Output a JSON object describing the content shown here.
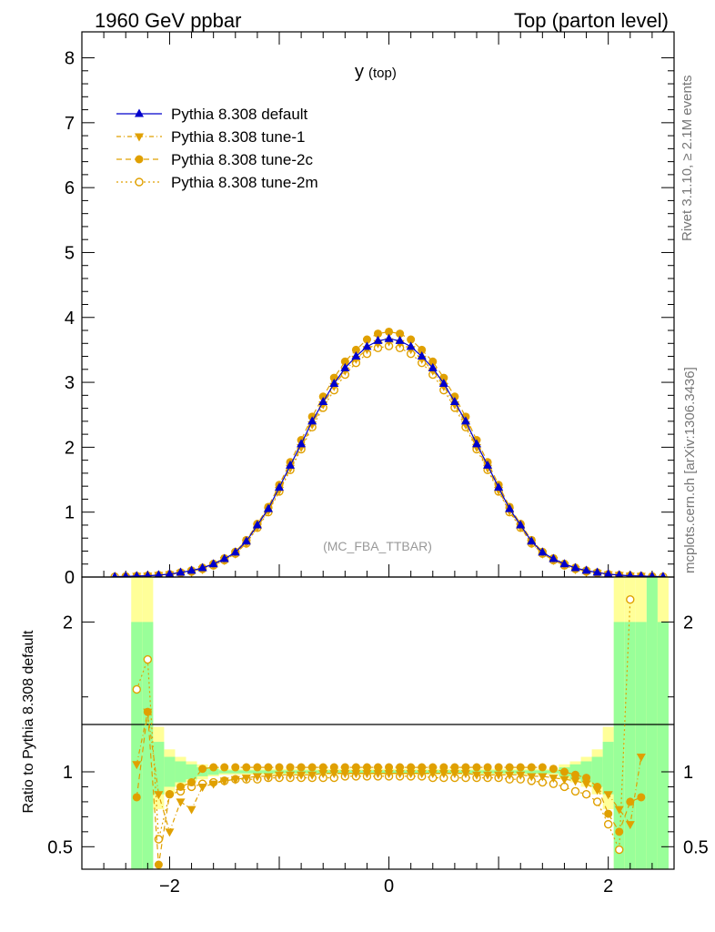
{
  "header": {
    "left": "1960 GeV ppbar",
    "right": "Top (parton level)"
  },
  "side_labels": {
    "rivet": "Rivet 3.1.10, ≥ 2.1M events",
    "mcplots": "mcplots.cern.ch [arXiv:1306.3436]"
  },
  "chart_data": {
    "type": "line",
    "title_main": "y",
    "title_sub": "(top)",
    "watermark": "(MC_FBA_TTBAR)",
    "xlim": [
      -2.8,
      2.6
    ],
    "upper": {
      "ylim": [
        0,
        8.4
      ],
      "yticks": [
        0,
        1,
        2,
        3,
        4,
        5,
        6,
        7,
        8
      ],
      "ytick_labels": [
        "0",
        "1",
        "2",
        "3",
        "4",
        "5",
        "6",
        "7",
        "8"
      ]
    },
    "ratio": {
      "ylabel": "Ratio to Pythia 8.308 default",
      "ylim": [
        0.35,
        2.3
      ],
      "yticks": [
        0.5,
        1,
        2
      ],
      "ytick_labels": [
        "0.5",
        "1",
        "2"
      ],
      "xticks": [
        -2,
        0,
        2
      ],
      "xtick_labels": [
        "−2",
        "0",
        "2"
      ]
    },
    "legend_position": "top-left",
    "colors": {
      "default": "#0000cc",
      "tunes": "#e0a000",
      "band_inner": "#99ff99",
      "band_outer": "#ffff99"
    },
    "x": [
      -2.5,
      -2.4,
      -2.3,
      -2.2,
      -2.1,
      -2.0,
      -1.9,
      -1.8,
      -1.7,
      -1.6,
      -1.5,
      -1.4,
      -1.3,
      -1.2,
      -1.1,
      -1.0,
      -0.9,
      -0.8,
      -0.7,
      -0.6,
      -0.5,
      -0.4,
      -0.3,
      -0.2,
      -0.1,
      0.0,
      0.1,
      0.2,
      0.3,
      0.4,
      0.5,
      0.6,
      0.7,
      0.8,
      0.9,
      1.0,
      1.1,
      1.2,
      1.3,
      1.4,
      1.5,
      1.6,
      1.7,
      1.8,
      1.9,
      2.0,
      2.1,
      2.2,
      2.3,
      2.4,
      2.5
    ],
    "series": [
      {
        "name": "Pythia 8.308 default",
        "marker": "triangle-up",
        "linestyle": "solid",
        "values": [
          0.005,
          0.01,
          0.015,
          0.02,
          0.03,
          0.045,
          0.07,
          0.1,
          0.14,
          0.2,
          0.28,
          0.38,
          0.55,
          0.8,
          1.05,
          1.38,
          1.72,
          2.05,
          2.4,
          2.7,
          2.98,
          3.22,
          3.4,
          3.55,
          3.64,
          3.67,
          3.64,
          3.55,
          3.4,
          3.22,
          2.98,
          2.7,
          2.4,
          2.05,
          1.72,
          1.38,
          1.05,
          0.8,
          0.55,
          0.38,
          0.28,
          0.2,
          0.14,
          0.1,
          0.07,
          0.045,
          0.03,
          0.02,
          0.015,
          0.01,
          0.005
        ],
        "ratio": [
          1,
          1,
          1,
          1,
          1,
          1,
          1,
          1,
          1,
          1,
          1,
          1,
          1,
          1,
          1,
          1,
          1,
          1,
          1,
          1,
          1,
          1,
          1,
          1,
          1,
          1,
          1,
          1,
          1,
          1,
          1,
          1,
          1,
          1,
          1,
          1,
          1,
          1,
          1,
          1,
          1,
          1,
          1,
          1,
          1,
          1,
          1,
          1,
          1,
          1,
          1
        ]
      },
      {
        "name": "Pythia 8.308 tune-1",
        "marker": "triangle-down",
        "linestyle": "dashdot",
        "values": [
          null,
          null,
          0.015,
          0.02,
          0.03,
          0.04,
          0.06,
          0.08,
          0.12,
          0.18,
          0.26,
          0.36,
          0.52,
          0.77,
          1.02,
          1.34,
          1.68,
          2.0,
          2.35,
          2.66,
          2.94,
          3.18,
          3.36,
          3.51,
          3.6,
          3.63,
          3.6,
          3.51,
          3.36,
          3.18,
          2.94,
          2.66,
          2.35,
          2.0,
          1.68,
          1.34,
          1.02,
          0.77,
          0.52,
          0.36,
          0.26,
          0.18,
          0.12,
          0.08,
          0.06,
          0.04,
          0.03,
          0.02,
          0.015,
          null,
          null
        ],
        "ratio": [
          null,
          null,
          1.05,
          1.4,
          0.85,
          0.6,
          0.8,
          0.75,
          0.9,
          0.92,
          0.94,
          0.95,
          0.96,
          0.97,
          0.97,
          0.98,
          0.98,
          0.98,
          0.98,
          0.99,
          0.99,
          0.99,
          0.99,
          0.99,
          0.99,
          0.99,
          0.99,
          0.99,
          0.99,
          0.99,
          0.99,
          0.99,
          0.99,
          0.98,
          0.98,
          0.98,
          0.98,
          0.98,
          0.97,
          0.97,
          0.96,
          0.95,
          0.94,
          0.92,
          0.88,
          0.85,
          0.75,
          0.65,
          1.1,
          null,
          null
        ]
      },
      {
        "name": "Pythia 8.308 tune-2c",
        "marker": "circle-filled",
        "linestyle": "dashed",
        "values": [
          null,
          0.01,
          0.015,
          0.02,
          0.03,
          0.045,
          0.072,
          0.102,
          0.145,
          0.205,
          0.29,
          0.39,
          0.57,
          0.82,
          1.08,
          1.42,
          1.77,
          2.11,
          2.47,
          2.78,
          3.07,
          3.32,
          3.5,
          3.66,
          3.75,
          3.78,
          3.75,
          3.66,
          3.5,
          3.32,
          3.07,
          2.78,
          2.47,
          2.11,
          1.77,
          1.42,
          1.08,
          0.82,
          0.57,
          0.39,
          0.29,
          0.205,
          0.145,
          0.102,
          0.072,
          0.045,
          0.03,
          0.02,
          0.015,
          0.01,
          null
        ],
        "ratio": [
          null,
          null,
          0.83,
          1.4,
          0.38,
          0.85,
          0.9,
          0.93,
          1.02,
          1.03,
          1.03,
          1.03,
          1.03,
          1.03,
          1.03,
          1.03,
          1.03,
          1.03,
          1.03,
          1.03,
          1.03,
          1.03,
          1.03,
          1.03,
          1.03,
          1.03,
          1.03,
          1.03,
          1.03,
          1.03,
          1.03,
          1.03,
          1.03,
          1.03,
          1.03,
          1.03,
          1.03,
          1.03,
          1.03,
          1.03,
          1.02,
          1.0,
          0.98,
          0.96,
          0.9,
          0.72,
          0.6,
          0.8,
          0.83,
          null,
          null
        ]
      },
      {
        "name": "Pythia 8.308 tune-2m",
        "marker": "circle-open",
        "linestyle": "dotted",
        "values": [
          0.005,
          0.01,
          0.015,
          0.02,
          0.028,
          0.04,
          0.06,
          0.085,
          0.125,
          0.18,
          0.26,
          0.36,
          0.52,
          0.76,
          1.0,
          1.32,
          1.65,
          1.97,
          2.31,
          2.61,
          2.88,
          3.12,
          3.3,
          3.44,
          3.53,
          3.56,
          3.53,
          3.44,
          3.3,
          3.12,
          2.88,
          2.61,
          2.31,
          1.97,
          1.65,
          1.32,
          1.0,
          0.76,
          0.52,
          0.36,
          0.26,
          0.18,
          0.125,
          0.085,
          0.06,
          0.04,
          0.028,
          0.02,
          0.015,
          0.01,
          0.005
        ],
        "ratio": [
          null,
          null,
          1.55,
          1.75,
          0.55,
          0.85,
          0.87,
          0.9,
          0.92,
          0.93,
          0.94,
          0.95,
          0.95,
          0.95,
          0.96,
          0.96,
          0.96,
          0.96,
          0.96,
          0.96,
          0.96,
          0.97,
          0.97,
          0.97,
          0.97,
          0.97,
          0.97,
          0.97,
          0.97,
          0.96,
          0.96,
          0.96,
          0.96,
          0.96,
          0.96,
          0.96,
          0.95,
          0.95,
          0.94,
          0.93,
          0.92,
          0.9,
          0.87,
          0.85,
          0.8,
          0.65,
          0.48,
          2.15,
          null,
          null,
          null
        ]
      }
    ],
    "band": {
      "x_edges": [
        -2.35,
        -2.25,
        -2.15,
        -2.05,
        -1.95,
        -1.85,
        -1.75,
        -1.65,
        -1.55,
        1.55,
        1.65,
        1.75,
        1.85,
        1.95,
        2.05,
        2.15,
        2.25,
        2.35,
        2.45,
        2.55
      ],
      "inner": [
        [
          0.35,
          2.0
        ],
        [
          0.35,
          2.0
        ],
        [
          0.85,
          1.2
        ],
        [
          0.9,
          1.1
        ],
        [
          0.93,
          1.07
        ],
        [
          0.95,
          1.05
        ],
        [
          0.97,
          1.03
        ],
        [
          0.98,
          1.02
        ],
        [
          0.99,
          1.01
        ],
        [
          0.97,
          1.03
        ],
        [
          0.95,
          1.05
        ],
        [
          0.93,
          1.07
        ],
        [
          0.9,
          1.1
        ],
        [
          0.85,
          1.2
        ],
        [
          0.35,
          2.0
        ],
        [
          0.35,
          2.0
        ],
        [
          0.35,
          2.0
        ],
        [
          0.35,
          2.3
        ],
        [
          0.35,
          2.0
        ]
      ],
      "outer": [
        [
          0.35,
          2.3
        ],
        [
          0.35,
          2.3
        ],
        [
          0.75,
          1.3
        ],
        [
          0.85,
          1.15
        ],
        [
          0.9,
          1.1
        ],
        [
          0.93,
          1.07
        ],
        [
          0.95,
          1.05
        ],
        [
          0.97,
          1.03
        ],
        [
          0.98,
          1.02
        ],
        [
          0.95,
          1.05
        ],
        [
          0.93,
          1.07
        ],
        [
          0.9,
          1.1
        ],
        [
          0.85,
          1.15
        ],
        [
          0.75,
          1.3
        ],
        [
          0.35,
          2.3
        ],
        [
          0.35,
          2.3
        ],
        [
          0.35,
          2.3
        ],
        [
          0.35,
          2.3
        ],
        [
          0.35,
          2.3
        ]
      ]
    }
  }
}
